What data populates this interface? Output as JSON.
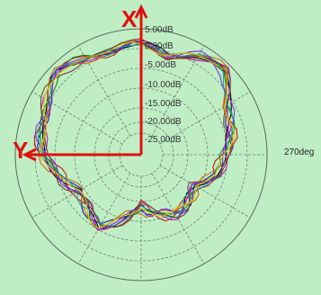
{
  "chart_data": {
    "type": "polar-line",
    "ring_labels": [
      "5.00dB",
      "0.00dB",
      "-5.00dB",
      "-10.00dB",
      "-15.00dB",
      "-20.00dB",
      "-25.00dB"
    ],
    "angle_labels": [
      "270deg"
    ],
    "axis_arrows": [
      {
        "label": "X",
        "direction": "up",
        "color": "#e01010"
      },
      {
        "label": "Y",
        "direction": "left",
        "color": "#e01010"
      }
    ],
    "background_color": "#bfeec4",
    "grid": "on",
    "n_series": 10,
    "series_colors": [
      "#000000",
      "#1a1aa8",
      "#c21a1a",
      "#1a8a1a",
      "#c218c2",
      "#d06a10",
      "#17a3a3",
      "#8a2be2",
      "#6b4a2a",
      "#d8c000"
    ]
  }
}
